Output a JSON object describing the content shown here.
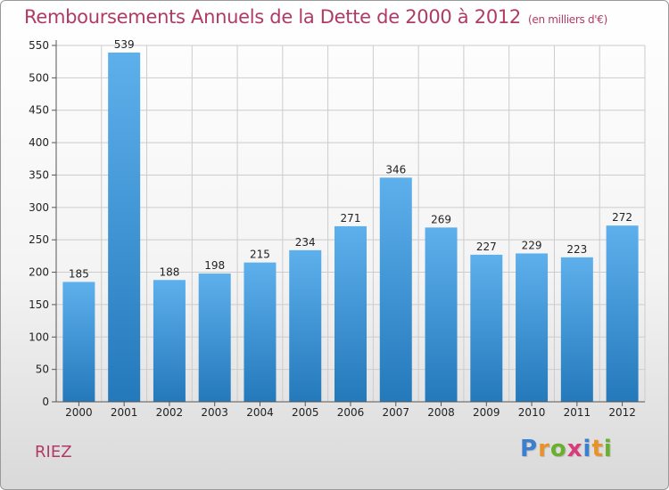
{
  "title": "Remboursements Annuels de la Dette de 2000 à 2012",
  "unit_note": "(en milliers d'€)",
  "town": "RIEZ",
  "logo": {
    "text": "Proxiti",
    "letter_colors": [
      "#3a7fd0",
      "#e8932a",
      "#6ab02e",
      "#d93a7a",
      "#3a7fd0",
      "#e8932a",
      "#6ab02e"
    ]
  },
  "colors": {
    "title": "#b03a66",
    "bar_top": "#5eb0ec",
    "bar_bottom": "#2479bb",
    "grid": "#cccccc",
    "axis_text": "#222222"
  },
  "chart_data": {
    "type": "bar",
    "categories": [
      "2000",
      "2001",
      "2002",
      "2003",
      "2004",
      "2005",
      "2006",
      "2007",
      "2008",
      "2009",
      "2010",
      "2011",
      "2012"
    ],
    "values": [
      185,
      539,
      188,
      198,
      215,
      234,
      271,
      346,
      269,
      227,
      229,
      223,
      272
    ],
    "yticks": [
      0,
      50,
      100,
      150,
      200,
      250,
      300,
      350,
      400,
      450,
      500,
      550
    ],
    "ylim": [
      0,
      550
    ],
    "grid": true,
    "data_labels": true
  }
}
